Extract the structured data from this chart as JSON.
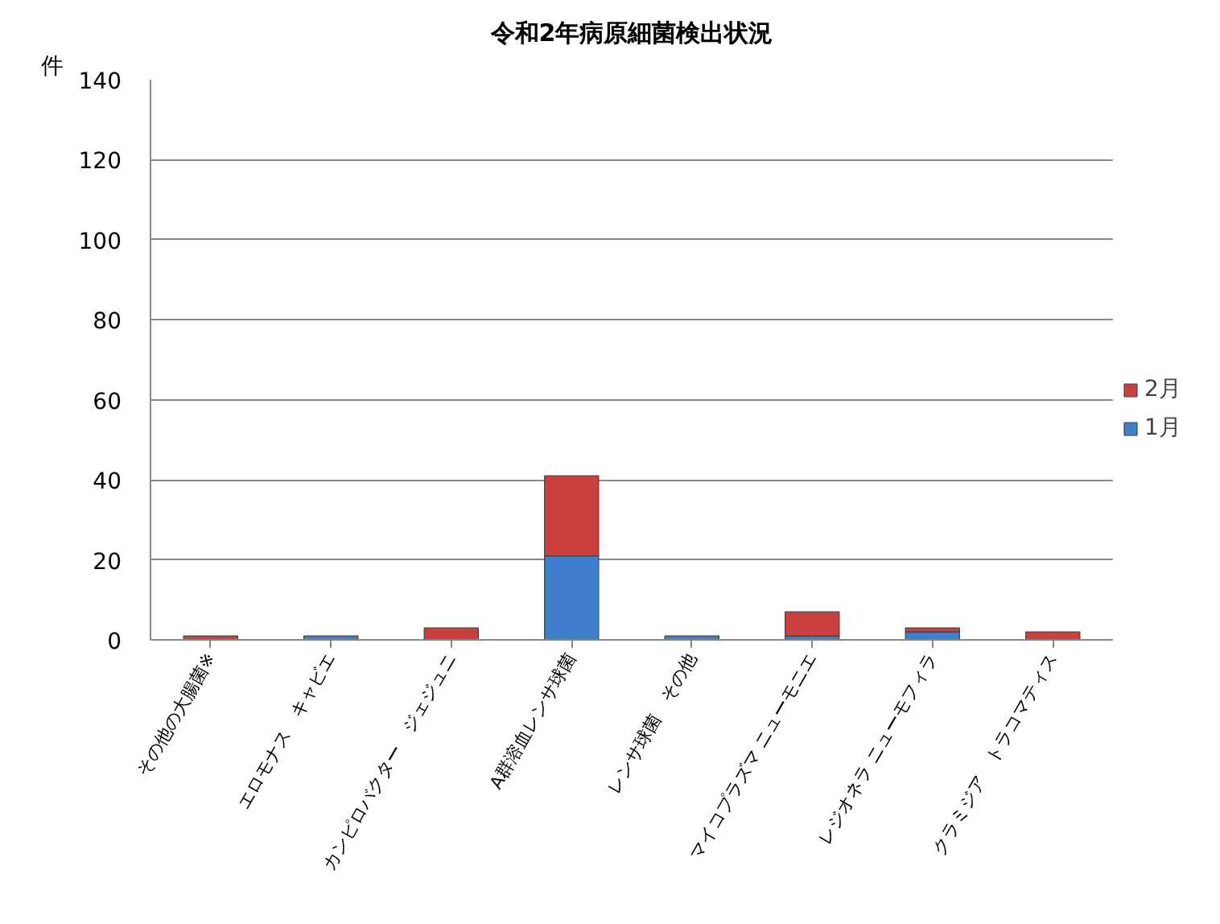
{
  "chart_data": {
    "type": "bar",
    "title": "令和2年病原細菌検出状況",
    "ylabel": "件",
    "categories": [
      "その他の大腸菌※",
      "エロモナス　キャビエ",
      "カンピロバクター　ジェジュニ",
      "A群溶血レンサ球菌",
      "レンサ球菌　その他",
      "マイコプラズマ ニューモニエ",
      "レジオネラ ニューモフィラ",
      "クラミジア　トラコマティス"
    ],
    "series": [
      {
        "name": "1月",
        "color": "#3f7fcc",
        "values": [
          null,
          1,
          null,
          21,
          1,
          1,
          2,
          null
        ]
      },
      {
        "name": "2月",
        "color": "#cc3f3f",
        "values": [
          1,
          null,
          3,
          20,
          null,
          6,
          1,
          2
        ]
      }
    ],
    "stacked": true,
    "ylim": [
      0,
      140
    ],
    "yticks": [
      0,
      20,
      40,
      60,
      80,
      100,
      120,
      140
    ],
    "grid": "y",
    "legend": "right"
  }
}
